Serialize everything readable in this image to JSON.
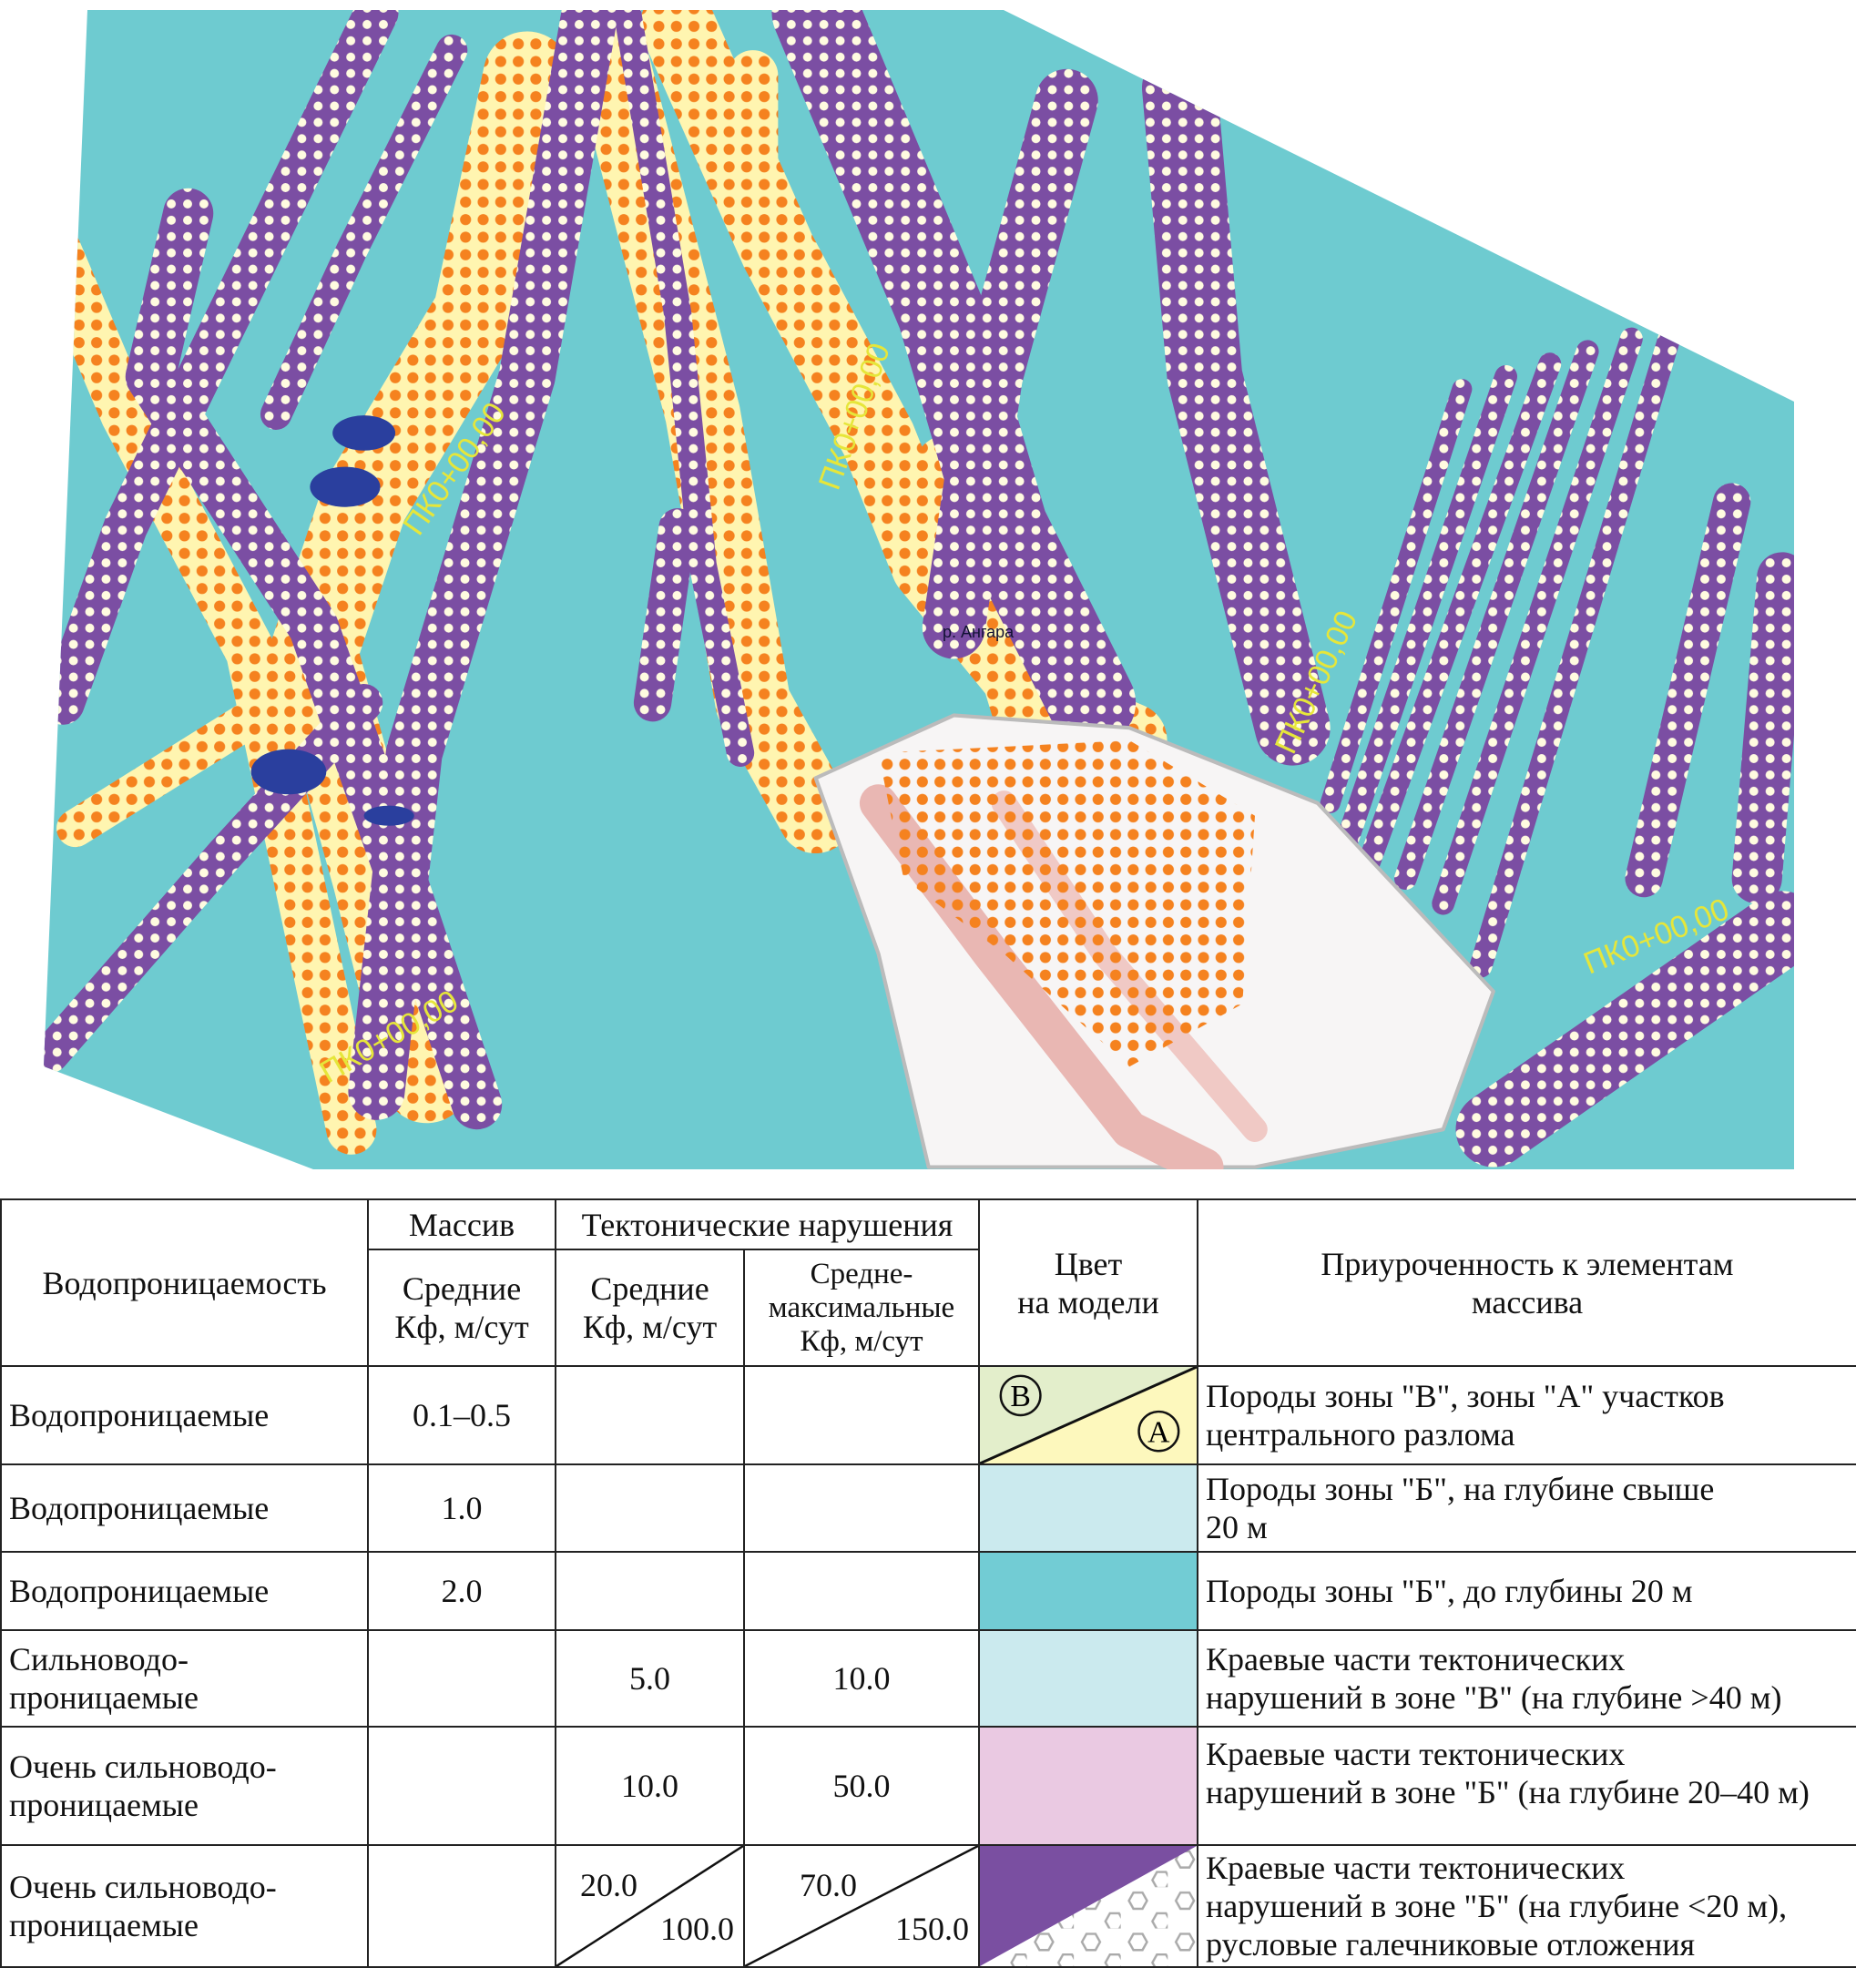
{
  "map": {
    "labels": {
      "pk_1": "ПК0+00,00",
      "pk_2": "ПК0+00,00",
      "pk_3": "ПК0+00,00",
      "pk_4": "ПК0+00,00",
      "pk_5": "ПК0+00,00",
      "river": "р. Ангара"
    },
    "colors": {
      "zone_b_shallow": "#6ecbd0",
      "fault_purple": "#7b4ea3",
      "zone_a_yellow": "#fff5b0",
      "orange_dots": "#f5821f",
      "pit_white": "#ffffff",
      "dark_blue": "#2a3f9e"
    }
  },
  "legend": {
    "headers": {
      "permeability": "Водопроницаемость",
      "massif": "Массив",
      "tectonic": "Тектонические нарушения",
      "massif_mean": [
        "Средние",
        "Кф, м/сут"
      ],
      "tect_mean": [
        "Средние",
        "Кф, м/сут"
      ],
      "tect_max": [
        "Средне-",
        "максимальные",
        "Кф, м/сут"
      ],
      "color": [
        "Цвет",
        "на модели"
      ],
      "association": [
        "Приуроченность к элементам",
        "массива"
      ]
    },
    "rows": [
      {
        "permeability": [
          "Водопроницаемые"
        ],
        "massif": "0.1–0.5",
        "tect_mean": "",
        "tect_max": "",
        "swatch": "b-a",
        "color_b": "#e3eecb",
        "color_a": "#fdf8bd",
        "label_b": "B",
        "label_a": "A",
        "association": [
          "Породы зоны \"В\", зоны \"А\" участков",
          "центрального разлома"
        ]
      },
      {
        "permeability": [
          "Водопроницаемые"
        ],
        "massif": "1.0",
        "tect_mean": "",
        "tect_max": "",
        "swatch": "solid",
        "color": "#cbeaee",
        "association": [
          "Породы зоны \"Б\", на глубине свыше",
          "20 м"
        ]
      },
      {
        "permeability": [
          "Водопроницаемые"
        ],
        "massif": "2.0",
        "tect_mean": "",
        "tect_max": "",
        "swatch": "solid",
        "color": "#72ccd4",
        "association": [
          "Породы зоны \"Б\", до глубины 20 м"
        ]
      },
      {
        "permeability": [
          "Сильноводо-",
          "проницаемые"
        ],
        "massif": "",
        "tect_mean": "5.0",
        "tect_max": "10.0",
        "swatch": "solid",
        "color": "#cbeaee",
        "association": [
          "Краевые части тектонических",
          "нарушений в зоне \"В\" (на глубине >40 м)"
        ]
      },
      {
        "permeability": [
          "Очень сильноводо-",
          "проницаемые"
        ],
        "massif": "",
        "tect_mean": "10.0",
        "tect_max": "50.0",
        "swatch": "solid",
        "color": "#eac9e2",
        "association": [
          "Краевые части тектонических",
          "нарушений в зоне \"Б\" (на глубине 20–40 м)"
        ]
      },
      {
        "permeability": [
          "Очень сильноводо-",
          "проницаемые"
        ],
        "massif": "",
        "tect_mean": [
          "20.0",
          "100.0"
        ],
        "tect_max": [
          "70.0",
          "150.0"
        ],
        "swatch": "purple-pebbles",
        "color": "#7a4fa1",
        "association": [
          "Краевые части тектонических",
          "нарушений в зоне \"Б\" (на глубине <20 м),",
          "русловые галечниковые отложения"
        ]
      }
    ]
  }
}
